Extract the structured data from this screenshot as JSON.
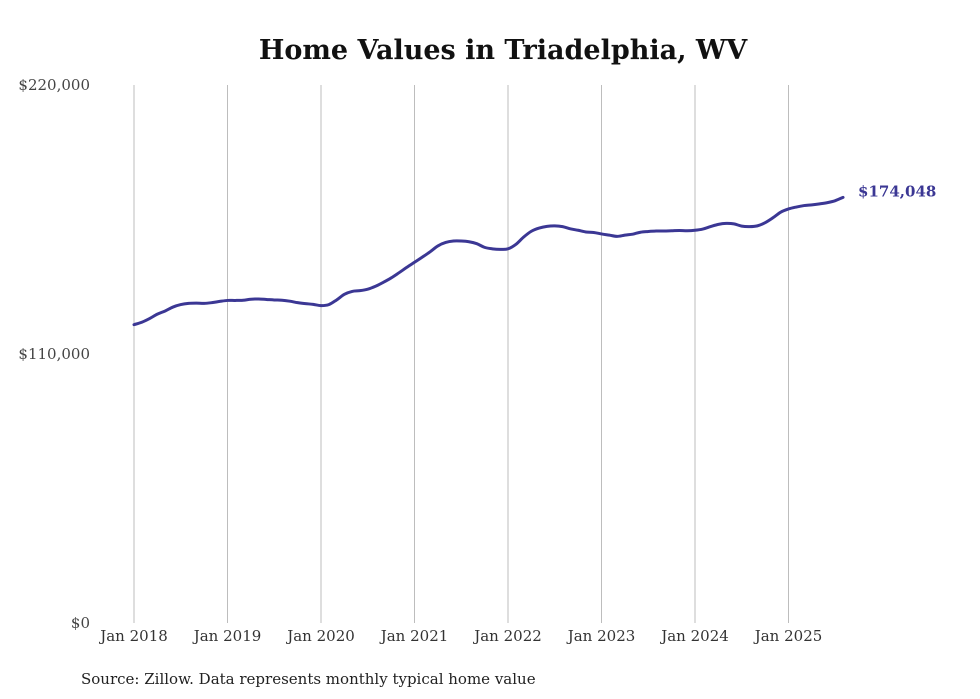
{
  "chart_data": {
    "type": "line",
    "title": "Home Values in Triadelphia, WV",
    "source": "Source: Zillow. Data represents monthly typical home value",
    "xlabel": "",
    "ylabel": "",
    "ylim": [
      0,
      220000
    ],
    "y_ticks": [
      {
        "value": 0,
        "label": "$0"
      },
      {
        "value": 110000,
        "label": "$110,000"
      },
      {
        "value": 220000,
        "label": "$220,000"
      }
    ],
    "x_ticks": [
      {
        "month_index": 0,
        "label": "Jan 2018"
      },
      {
        "month_index": 12,
        "label": "Jan 2019"
      },
      {
        "month_index": 24,
        "label": "Jan 2020"
      },
      {
        "month_index": 36,
        "label": "Jan 2021"
      },
      {
        "month_index": 48,
        "label": "Jan 2022"
      },
      {
        "month_index": 60,
        "label": "Jan 2023"
      },
      {
        "month_index": 72,
        "label": "Jan 2024"
      },
      {
        "month_index": 84,
        "label": "Jan 2025"
      }
    ],
    "grid": "vertical",
    "series": [
      {
        "name": "Typical home value",
        "color": "#3b3794",
        "start": "Jan 2018",
        "frequency": "monthly",
        "end_label": "$174,048",
        "values": [
          122000,
          123000,
          124500,
          126300,
          127600,
          129200,
          130200,
          130700,
          130800,
          130700,
          131000,
          131500,
          131900,
          131900,
          132000,
          132400,
          132500,
          132300,
          132100,
          132000,
          131600,
          131000,
          130600,
          130300,
          129800,
          130200,
          132100,
          134400,
          135600,
          135900,
          136500,
          137700,
          139300,
          141100,
          143200,
          145400,
          147500,
          149600,
          151800,
          154200,
          155600,
          156200,
          156200,
          155900,
          155100,
          153600,
          153000,
          152800,
          153000,
          154800,
          157800,
          160200,
          161500,
          162200,
          162400,
          162100,
          161200,
          160600,
          159900,
          159700,
          159100,
          158600,
          158100,
          158600,
          159000,
          159800,
          160100,
          160300,
          160300,
          160400,
          160500,
          160400,
          160600,
          161100,
          162100,
          163000,
          163400,
          163200,
          162300,
          162100,
          162400,
          163700,
          165700,
          168000,
          169300,
          170100,
          170700,
          171000,
          171400,
          171900,
          172700,
          174048
        ]
      }
    ]
  }
}
